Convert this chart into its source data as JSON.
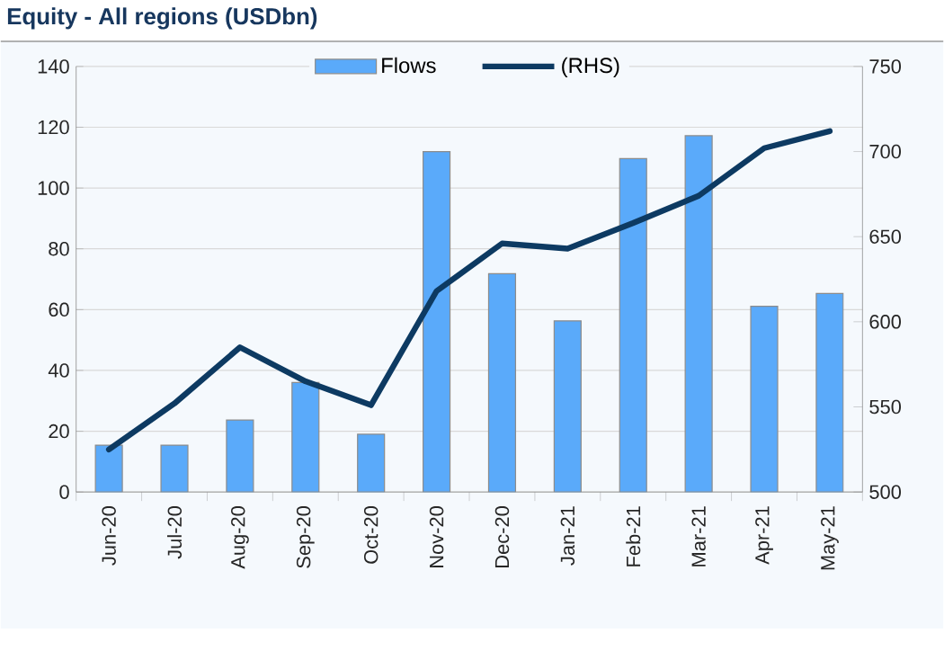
{
  "chart_data": {
    "type": "bar",
    "title": "Equity - All regions (USDbn)",
    "categories": [
      "Jun-20",
      "Jul-20",
      "Aug-20",
      "Sep-20",
      "Oct-20",
      "Nov-20",
      "Dec-20",
      "Jan-21",
      "Feb-21",
      "Mar-21",
      "Apr-21",
      "May-21"
    ],
    "series": [
      {
        "name": "Flows",
        "color": "#5aaafa",
        "values": [
          15.4,
          15.4,
          23.7,
          36,
          19,
          112,
          71.8,
          56.3,
          109.7,
          117.2,
          61.1,
          65.3
        ]
      },
      {
        "name": "(RHS)",
        "type": "line",
        "axis": "y2",
        "color": "#0d3a62",
        "values": [
          525,
          552,
          585,
          565,
          551,
          618,
          646,
          643,
          658,
          674,
          702,
          712
        ]
      }
    ],
    "ylim": [
      0,
      140
    ],
    "yticks": [
      0,
      20,
      40,
      60,
      80,
      100,
      120,
      140
    ],
    "y2lim": [
      500,
      750
    ],
    "y2ticks": [
      500,
      550,
      600,
      650,
      700,
      750
    ],
    "grid": "y",
    "legend": "top"
  }
}
